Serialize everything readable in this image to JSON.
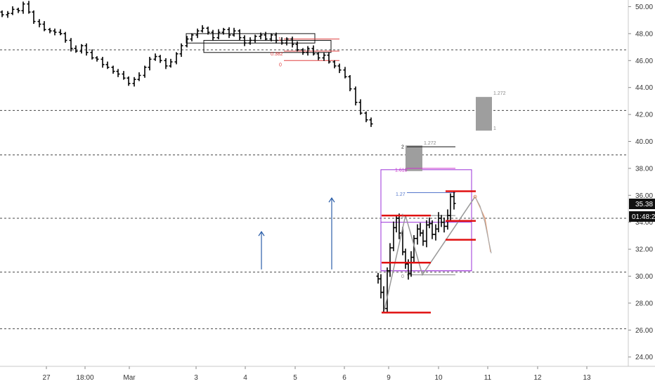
{
  "chart_data": {
    "type": "ohlc",
    "title": "",
    "xlabel": "",
    "ylabel": "",
    "ylim": [
      22.8,
      51.0
    ],
    "y_ticks": [
      "50.00",
      "48.00",
      "46.00",
      "44.00",
      "42.00",
      "40.00",
      "38.00",
      "36.00",
      "34.00",
      "32.00",
      "30.00",
      "28.00",
      "26.00",
      "24.00"
    ],
    "x_ticks": [
      "27",
      "18:00",
      "Mar",
      "3",
      "4",
      "5",
      "6",
      "9",
      "10",
      "11",
      "12",
      "13"
    ],
    "grid": false,
    "current_price": "35.38",
    "countdown": "01:48:2",
    "horizontal_levels": [
      46.8,
      42.3,
      39.0,
      34.3,
      30.3,
      26.1
    ],
    "series": [
      {
        "values": [
          49.4,
          49.5,
          49.8,
          49.7,
          50.2,
          49.6,
          48.9,
          48.7,
          48.3,
          48.2,
          48.1,
          48.0,
          47.5,
          46.9,
          46.7,
          47.1,
          46.6,
          46.2,
          46.1,
          45.7,
          45.5,
          45.2,
          45.0,
          44.7,
          44.3,
          44.6,
          44.9,
          45.5,
          46.1,
          46.3,
          46.0,
          45.6,
          45.9,
          46.5,
          47.1,
          47.6,
          47.9,
          48.2,
          48.4,
          48.1,
          47.7,
          48.1,
          48.3,
          47.9,
          48.2,
          47.7,
          47.3,
          47.5,
          47.8,
          47.9,
          47.6,
          47.9,
          47.5,
          47.3,
          47.6,
          47.2,
          46.8,
          46.6,
          46.9,
          46.5,
          46.2,
          46.4,
          45.9,
          45.6,
          45.3,
          44.8,
          43.9,
          42.9,
          42.1,
          41.6,
          41.3
        ]
      },
      {
        "values": [
          29.8,
          28.8,
          27.6,
          30.4,
          32.1,
          33.6,
          34.3,
          33.2,
          31.8,
          30.9,
          30.2,
          31.4,
          32.8,
          33.5,
          33.2,
          32.6,
          33.8,
          33.9,
          33.1,
          33.5,
          34.3,
          34.0,
          33.7,
          34.5,
          35.9,
          35.4
        ]
      }
    ],
    "fib_labels": [
      "1",
      "0.382",
      "0",
      "2",
      "1.618",
      "1.27",
      "1",
      "0",
      "1.272",
      "1.272",
      "1"
    ],
    "annotations": [
      "up-arrow",
      "up-arrow"
    ]
  }
}
